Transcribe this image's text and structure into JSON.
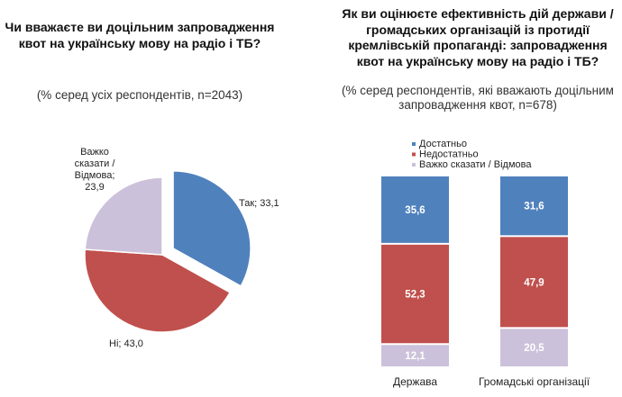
{
  "chart_data": [
    {
      "type": "pie",
      "title": "Чи вважаєте ви доцільним запровадження квот на українську мову на радіо і ТБ?",
      "subtitle": "(% серед усіх респондентів, n=2043)",
      "slices": [
        {
          "label": "Так",
          "value": 33.1,
          "color": "#4f81bd",
          "text": "Так; 33,1",
          "exploded": true
        },
        {
          "label": "Ні",
          "value": 43.0,
          "color": "#c0504d",
          "text": "Ні; 43,0"
        },
        {
          "label": "Важко сказати / Відмова",
          "value": 23.9,
          "color": "#ccc1da",
          "text_lines": [
            "Важко",
            "сказати /",
            "Відмова;",
            "23,9"
          ]
        }
      ]
    },
    {
      "type": "bar",
      "stacked": true,
      "title_lines": [
        "Як ви оцінюєте ефективність дій держави /",
        "громадських організацій із протидії",
        "кремлівській пропаганді: запровадження",
        "квот на українську мову на радіо і ТБ?"
      ],
      "subtitle_lines": [
        "(% серед респондентів, які вважають доцільним",
        "запровадження квот, n=678)"
      ],
      "categories": [
        "Держава",
        "Громадські організації"
      ],
      "legend_position": "top",
      "series": [
        {
          "name": "Важко сказати / Відмова",
          "values": [
            12.1,
            20.5
          ],
          "labels": [
            "12,1",
            "20,5"
          ],
          "color": "#ccc1da"
        },
        {
          "name": "Недостатньо",
          "values": [
            52.3,
            47.9
          ],
          "labels": [
            "52,3",
            "47,9"
          ],
          "color": "#c0504d"
        },
        {
          "name": "Достатньо",
          "values": [
            35.6,
            31.6
          ],
          "labels": [
            "35,6",
            "31,6"
          ],
          "color": "#4f81bd"
        }
      ]
    }
  ]
}
